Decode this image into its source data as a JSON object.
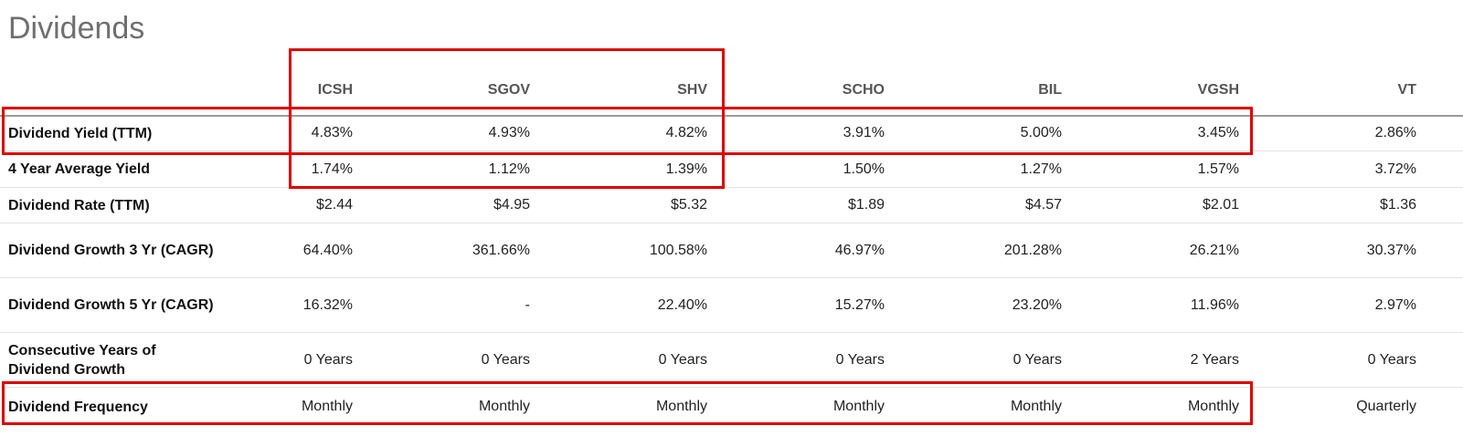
{
  "title": "Dividends",
  "columns": [
    "ICSH",
    "SGOV",
    "SHV",
    "SCHO",
    "BIL",
    "VGSH",
    "VT"
  ],
  "rows": [
    {
      "label": "Dividend Yield (TTM)",
      "values": [
        "4.83%",
        "4.93%",
        "4.82%",
        "3.91%",
        "5.00%",
        "3.45%",
        "2.86%"
      ]
    },
    {
      "label": "4 Year Average Yield",
      "values": [
        "1.74%",
        "1.12%",
        "1.39%",
        "1.50%",
        "1.27%",
        "1.57%",
        "3.72%"
      ]
    },
    {
      "label": "Dividend Rate (TTM)",
      "values": [
        "$2.44",
        "$4.95",
        "$5.32",
        "$1.89",
        "$4.57",
        "$2.01",
        "$1.36"
      ]
    },
    {
      "label": "Dividend Growth 3 Yr (CAGR)",
      "values": [
        "64.40%",
        "361.66%",
        "100.58%",
        "46.97%",
        "201.28%",
        "26.21%",
        "30.37%"
      ]
    },
    {
      "label": "Dividend Growth 5 Yr (CAGR)",
      "values": [
        "16.32%",
        "-",
        "22.40%",
        "15.27%",
        "23.20%",
        "11.96%",
        "2.97%"
      ]
    },
    {
      "label": "Consecutive Years of Dividend Growth",
      "values": [
        "0 Years",
        "0 Years",
        "0 Years",
        "0 Years",
        "0 Years",
        "2 Years",
        "0 Years"
      ]
    },
    {
      "label": "Dividend Frequency",
      "values": [
        "Monthly",
        "Monthly",
        "Monthly",
        "Monthly",
        "Monthly",
        "Monthly",
        "Quarterly"
      ]
    }
  ],
  "highlight_color": "#dd0000"
}
